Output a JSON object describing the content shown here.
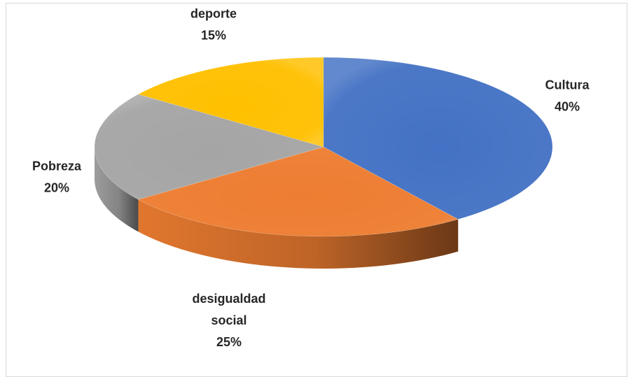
{
  "chart_data": {
    "type": "pie",
    "title": "",
    "categories": [
      "Cultura",
      "desigualdad social",
      "Pobreza",
      "deporte"
    ],
    "values": [
      40,
      25,
      20,
      15
    ],
    "percent_labels": [
      "40%",
      "25%",
      "20%",
      "15%"
    ],
    "colors": [
      "#4472C4",
      "#ED7D31",
      "#A5A5A5",
      "#FFC000"
    ],
    "label_lines": [
      [
        "Cultura"
      ],
      [
        "desigualdad",
        "social"
      ],
      [
        "Pobreza"
      ],
      [
        "deporte"
      ]
    ],
    "start_angle_deg": 90,
    "direction": "clockwise",
    "style": "3d"
  }
}
